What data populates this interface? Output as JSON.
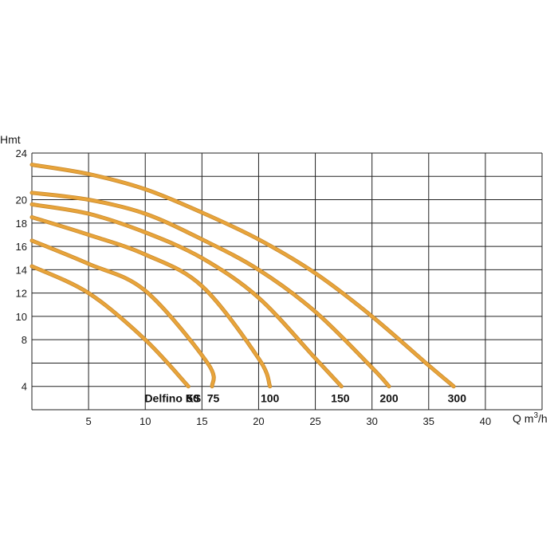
{
  "chart_data": {
    "type": "line",
    "ylabel": "Hmt",
    "xlabel": "Q m",
    "xlabel_sup": "3",
    "xlabel_tail": "/h",
    "xlim": [
      0,
      45
    ],
    "ylim": [
      2,
      24
    ],
    "x_ticks": [
      5,
      10,
      15,
      20,
      25,
      30,
      35,
      40
    ],
    "y_ticks": [
      4,
      8,
      10,
      12,
      14,
      16,
      18,
      20,
      24
    ],
    "grid_x": [
      0,
      5,
      10,
      15,
      20,
      25,
      30,
      35,
      40,
      45
    ],
    "grid_y": [
      2,
      4,
      6,
      8,
      10,
      12,
      14,
      16,
      18,
      20,
      22,
      24
    ],
    "grid": true,
    "curve_color": "#e8a43b",
    "series_title": "Delfino KS",
    "series": [
      {
        "name": "50",
        "points": [
          [
            0,
            14.3
          ],
          [
            5,
            12.0
          ],
          [
            10,
            8.0
          ],
          [
            13.8,
            4.0
          ]
        ]
      },
      {
        "name": "75",
        "points": [
          [
            0,
            16.5
          ],
          [
            5,
            14.5
          ],
          [
            10,
            12.2
          ],
          [
            15.5,
            6.0
          ],
          [
            15.9,
            4.0
          ]
        ]
      },
      {
        "name": "100",
        "points": [
          [
            0,
            18.5
          ],
          [
            5,
            17.0
          ],
          [
            10,
            15.3
          ],
          [
            15,
            12.6
          ],
          [
            20,
            6.4
          ],
          [
            21.0,
            4.0
          ]
        ]
      },
      {
        "name": "150",
        "points": [
          [
            0,
            19.6
          ],
          [
            5,
            18.8
          ],
          [
            10,
            17.2
          ],
          [
            15,
            15.0
          ],
          [
            20,
            11.6
          ],
          [
            25,
            6.4
          ],
          [
            27.3,
            4.0
          ]
        ]
      },
      {
        "name": "200",
        "points": [
          [
            0,
            20.6
          ],
          [
            5,
            20.0
          ],
          [
            10,
            18.8
          ],
          [
            15,
            16.6
          ],
          [
            20,
            14.0
          ],
          [
            25,
            10.4
          ],
          [
            30,
            5.6
          ],
          [
            31.5,
            4.0
          ]
        ]
      },
      {
        "name": "300",
        "points": [
          [
            0,
            23.0
          ],
          [
            5,
            22.2
          ],
          [
            10,
            20.9
          ],
          [
            15,
            18.9
          ],
          [
            20,
            16.6
          ],
          [
            25,
            13.7
          ],
          [
            30,
            10.0
          ],
          [
            35,
            5.8
          ],
          [
            37.2,
            4.0
          ]
        ]
      }
    ],
    "labels_x": {
      "title": 14.5,
      "50": 14.2,
      "75": 16.0,
      "100": 21.0,
      "150": 27.2,
      "200": 31.5,
      "300": 37.5
    },
    "labels_y": 3.0
  }
}
